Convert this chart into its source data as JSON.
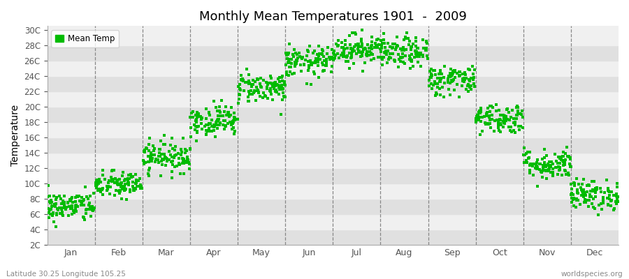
{
  "title": "Monthly Mean Temperatures 1901  -  2009",
  "ylabel": "Temperature",
  "bottom_left_text": "Latitude 30.25 Longitude 105.25",
  "bottom_right_text": "worldspecies.org",
  "legend_label": "Mean Temp",
  "dot_color": "#00bb00",
  "background_color": "#ffffff",
  "plot_bg_light": "#f0f0f0",
  "plot_bg_dark": "#e0e0e0",
  "ytick_labels": [
    "2C",
    "4C",
    "6C",
    "8C",
    "10C",
    "12C",
    "14C",
    "16C",
    "18C",
    "20C",
    "22C",
    "24C",
    "26C",
    "28C",
    "30C"
  ],
  "ytick_values": [
    2,
    4,
    6,
    8,
    10,
    12,
    14,
    16,
    18,
    20,
    22,
    24,
    26,
    28,
    30
  ],
  "ylim": [
    2,
    30.5
  ],
  "months": [
    "Jan",
    "Feb",
    "Mar",
    "Apr",
    "May",
    "Jun",
    "Jul",
    "Aug",
    "Sep",
    "Oct",
    "Nov",
    "Dec"
  ],
  "month_mean_temps": [
    7.0,
    9.8,
    13.5,
    18.2,
    22.5,
    25.8,
    27.5,
    27.0,
    23.5,
    18.5,
    12.5,
    8.5
  ],
  "month_std_temps": [
    1.0,
    0.9,
    1.0,
    1.0,
    1.0,
    1.0,
    1.0,
    1.0,
    1.0,
    1.0,
    1.0,
    1.0
  ],
  "n_years": 109
}
